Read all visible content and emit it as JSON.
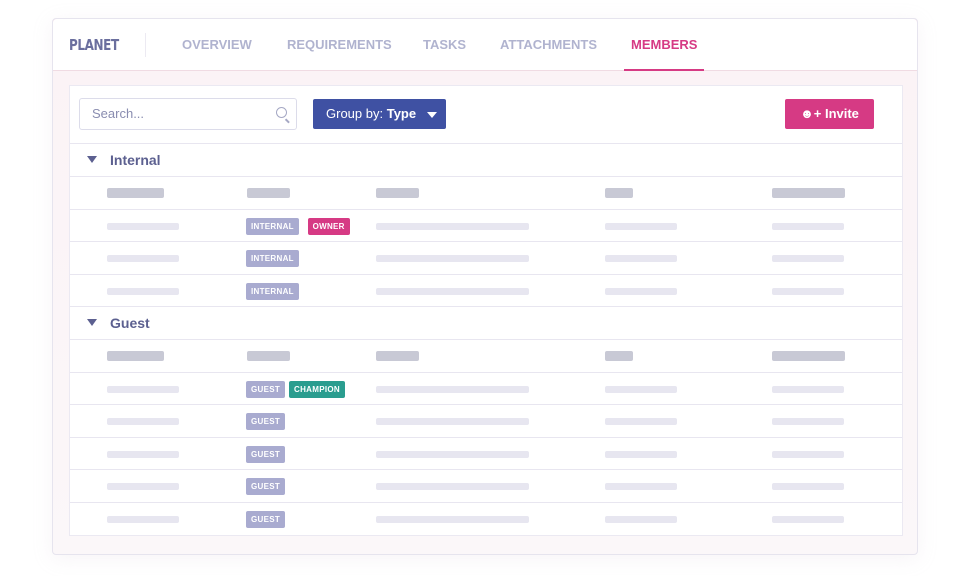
{
  "header": {
    "logo": "PLANET",
    "tabs": [
      {
        "label": "OVERVIEW"
      },
      {
        "label": "REQUIREMENTS"
      },
      {
        "label": "TASKS"
      },
      {
        "label": "ATTACHMENTS"
      },
      {
        "label": "MEMBERS",
        "active": true
      }
    ]
  },
  "toolbar": {
    "search_placeholder": "Search...",
    "group_prefix": "Group by:",
    "group_value": "Type",
    "invite_label": "Invite"
  },
  "colors": {
    "accent": "#d63a84",
    "primary": "#3f51a3",
    "internal_tag": "#a9abd0",
    "owner_tag": "#d63a84",
    "guest_tag": "#a9abd0",
    "champion_tag": "#2a9d8f"
  },
  "groups": [
    {
      "label": "Internal",
      "rows": [
        {
          "tags": [
            "INTERNAL",
            "OWNER"
          ]
        },
        {
          "tags": [
            "INTERNAL"
          ]
        },
        {
          "tags": [
            "INTERNAL"
          ]
        }
      ]
    },
    {
      "label": "Guest",
      "rows": [
        {
          "tags": [
            "GUEST",
            "CHAMPION"
          ]
        },
        {
          "tags": [
            "GUEST"
          ]
        },
        {
          "tags": [
            "GUEST"
          ]
        },
        {
          "tags": [
            "GUEST"
          ]
        },
        {
          "tags": [
            "GUEST"
          ]
        }
      ]
    }
  ]
}
